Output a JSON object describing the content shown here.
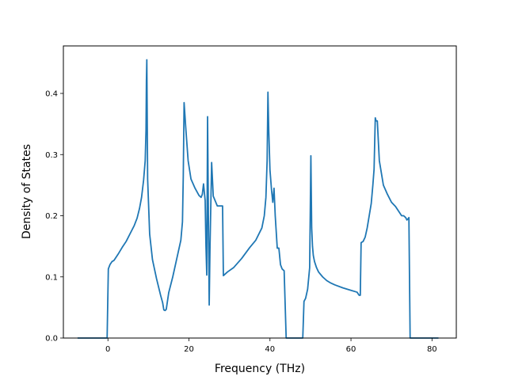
{
  "chart_data": {
    "type": "line",
    "title": "",
    "xlabel": "Frequency (THz)",
    "ylabel": "Density of States",
    "xlim": [
      -11.0,
      86.0
    ],
    "ylim": [
      0.0,
      0.4
    ],
    "xticks": [
      0,
      20,
      40,
      60,
      80
    ],
    "yticks": [
      0.0,
      0.1,
      0.2,
      0.3,
      0.4
    ],
    "xtick_labels": [
      "0",
      "20",
      "40",
      "60",
      "80"
    ],
    "ytick_labels": [
      "0.0",
      "0.1",
      "0.2",
      "0.3",
      "0.4"
    ],
    "grid": false,
    "line_color": "#1f77b4",
    "series": [
      {
        "x": [
          -7.5,
          -6,
          -4,
          -2,
          -0.6,
          -0.2,
          0.1,
          0.5,
          1.0,
          1.5,
          2.5,
          3.5,
          4.5,
          5.5,
          6.5,
          7.2,
          7.8,
          8.3,
          8.8,
          9.2,
          9.4,
          9.5,
          9.6,
          9.8,
          10.3,
          11.0,
          12.0,
          13.0,
          13.5,
          13.8,
          14.1,
          14.4,
          15.0,
          16.0,
          17.0,
          18.0,
          18.4,
          18.6,
          18.8,
          19.2,
          19.8,
          20.5,
          21.5,
          22.5,
          23.0,
          23.3,
          23.6,
          24.0,
          24.2,
          24.4,
          24.6,
          24.8,
          25.0,
          25.2,
          25.6,
          26.0,
          27.0,
          28.0,
          28.3,
          28.5,
          29.5,
          31.0,
          33.0,
          35.0,
          36.5,
          38.0,
          38.6,
          39.0,
          39.3,
          39.5,
          39.7,
          40.0,
          40.4,
          40.7,
          41.0,
          41.3,
          41.8,
          42.2,
          42.6,
          43.0,
          43.5,
          44.0,
          44.2,
          44.4,
          44.6,
          47.8,
          48.1,
          48.4,
          48.8,
          49.3,
          49.8,
          50.1,
          50.3,
          50.5,
          50.7,
          51.0,
          51.5,
          52.0,
          53.0,
          54.0,
          55.0,
          56.0,
          58.0,
          60.0,
          61.5,
          61.8,
          62.0,
          62.3,
          62.5,
          63.0,
          63.5,
          64.0,
          64.5,
          65.0,
          65.4,
          65.7,
          66.0,
          66.2,
          66.5,
          67.0,
          67.5,
          68.0,
          69.0,
          70.0,
          71.0,
          72.0,
          72.5,
          73.0,
          73.5,
          73.8,
          74.1,
          74.3,
          74.6,
          75.0,
          78.0,
          81.0,
          81.6
        ],
        "y": [
          0.0,
          0.0,
          0.0,
          0.0,
          0.0,
          0.0,
          0.113,
          0.12,
          0.125,
          0.127,
          0.137,
          0.148,
          0.158,
          0.171,
          0.184,
          0.196,
          0.212,
          0.23,
          0.258,
          0.29,
          0.34,
          0.42,
          0.455,
          0.26,
          0.17,
          0.128,
          0.097,
          0.07,
          0.058,
          0.046,
          0.045,
          0.047,
          0.074,
          0.1,
          0.13,
          0.16,
          0.19,
          0.265,
          0.385,
          0.345,
          0.29,
          0.26,
          0.245,
          0.233,
          0.23,
          0.235,
          0.252,
          0.225,
          0.15,
          0.103,
          0.362,
          0.2,
          0.054,
          0.15,
          0.287,
          0.232,
          0.216,
          0.216,
          0.216,
          0.102,
          0.108,
          0.115,
          0.13,
          0.148,
          0.16,
          0.18,
          0.2,
          0.23,
          0.29,
          0.402,
          0.34,
          0.275,
          0.241,
          0.222,
          0.245,
          0.2,
          0.147,
          0.147,
          0.12,
          0.113,
          0.11,
          0.0,
          0.0,
          0.0,
          0.0,
          0.0,
          0.0,
          0.06,
          0.065,
          0.08,
          0.115,
          0.298,
          0.18,
          0.15,
          0.135,
          0.125,
          0.115,
          0.108,
          0.1,
          0.094,
          0.09,
          0.087,
          0.082,
          0.078,
          0.075,
          0.072,
          0.07,
          0.07,
          0.156,
          0.158,
          0.165,
          0.18,
          0.2,
          0.22,
          0.25,
          0.276,
          0.36,
          0.355,
          0.355,
          0.29,
          0.27,
          0.25,
          0.235,
          0.222,
          0.215,
          0.205,
          0.2,
          0.2,
          0.197,
          0.193,
          0.195,
          0.197,
          0.0,
          0.0,
          0.0,
          0.0,
          0.0
        ]
      }
    ]
  }
}
